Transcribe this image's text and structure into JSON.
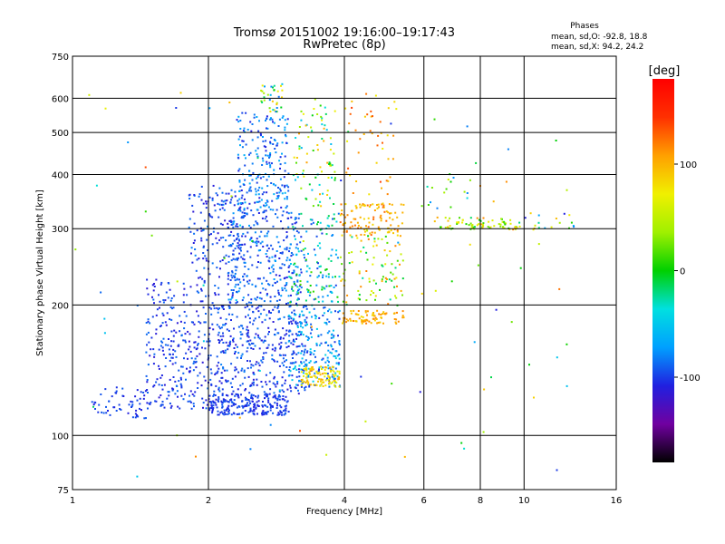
{
  "chart_data": {
    "type": "scatter",
    "title": "Tromsø 20151002  19:16:00–19:17:43",
    "subtitle": "RwPretec (8p)",
    "xlabel": "Frequency [MHz]",
    "ylabel": "Stationary phase Virtual Height [km]",
    "x_scale": "log",
    "y_scale": "log",
    "xlim": [
      1,
      16
    ],
    "ylim": [
      75,
      750
    ],
    "x_ticks": [
      1,
      2,
      4,
      6,
      8,
      10,
      16
    ],
    "y_ticks": [
      75,
      100,
      200,
      300,
      400,
      500,
      600,
      750
    ],
    "x_gridlines": [
      2,
      4,
      6,
      8,
      10
    ],
    "y_gridlines": [
      100,
      200,
      300,
      400,
      500,
      600
    ],
    "grid": true,
    "stats": {
      "heading": "Phases",
      "line_o": "mean, sd,O: -92.8, 18.8",
      "line_x": "mean, sd,X:  94.2, 24.2"
    },
    "colorbar": {
      "label": "[deg]",
      "range": [
        -180,
        180
      ],
      "ticks": [
        100,
        0,
        -100
      ],
      "colors": [
        "#000000",
        "#7000a0",
        "#2020e0",
        "#00a0ff",
        "#00e0e0",
        "#00d000",
        "#a0f000",
        "#f0f000",
        "#ffa000",
        "#ff3000",
        "#ff0000"
      ]
    },
    "clusters": [
      {
        "f": [
          1.1,
          1.45
        ],
        "h": [
          110,
          130
        ],
        "n": 60,
        "phase": [
          -110,
          -90
        ]
      },
      {
        "f": [
          1.45,
          2.1
        ],
        "h": [
          115,
          230
        ],
        "n": 320,
        "phase": [
          -115,
          -85
        ]
      },
      {
        "f": [
          1.8,
          2.4
        ],
        "h": [
          230,
          380
        ],
        "n": 180,
        "phase": [
          -115,
          -80
        ]
      },
      {
        "f": [
          2.0,
          3.0
        ],
        "h": [
          112,
          125
        ],
        "n": 220,
        "phase": [
          -110,
          -90
        ]
      },
      {
        "f": [
          2.1,
          3.3
        ],
        "h": [
          125,
          200
        ],
        "n": 350,
        "phase": [
          -115,
          -80
        ]
      },
      {
        "f": [
          2.2,
          3.2
        ],
        "h": [
          200,
          330
        ],
        "n": 300,
        "phase": [
          -110,
          -70
        ]
      },
      {
        "f": [
          2.3,
          3.0
        ],
        "h": [
          330,
          560
        ],
        "n": 220,
        "phase": [
          -110,
          -60
        ]
      },
      {
        "f": [
          2.6,
          2.9
        ],
        "h": [
          560,
          650
        ],
        "n": 35,
        "phase": [
          -90,
          100
        ]
      },
      {
        "f": [
          3.0,
          3.9
        ],
        "h": [
          130,
          200
        ],
        "n": 220,
        "phase": [
          -110,
          -40
        ]
      },
      {
        "f": [
          3.0,
          3.9
        ],
        "h": [
          200,
          330
        ],
        "n": 140,
        "phase": [
          -100,
          20
        ]
      },
      {
        "f": [
          3.1,
          3.8
        ],
        "h": [
          330,
          600
        ],
        "n": 80,
        "phase": [
          -60,
          110
        ]
      },
      {
        "f": [
          3.2,
          3.9
        ],
        "h": [
          130,
          145
        ],
        "n": 100,
        "phase": [
          60,
          110
        ]
      },
      {
        "f": [
          3.9,
          5.4
        ],
        "h": [
          182,
          195
        ],
        "n": 80,
        "phase": [
          80,
          120
        ]
      },
      {
        "f": [
          3.9,
          5.4
        ],
        "h": [
          290,
          345
        ],
        "n": 110,
        "phase": [
          80,
          130
        ]
      },
      {
        "f": [
          3.9,
          5.4
        ],
        "h": [
          200,
          290
        ],
        "n": 90,
        "phase": [
          -30,
          120
        ]
      },
      {
        "f": [
          4.0,
          5.2
        ],
        "h": [
          350,
          620
        ],
        "n": 45,
        "phase": [
          70,
          140
        ]
      },
      {
        "f": [
          6.3,
          9.8
        ],
        "h": [
          300,
          320
        ],
        "n": 75,
        "phase": [
          -20,
          120
        ]
      },
      {
        "f": [
          6.0,
          8.0
        ],
        "h": [
          330,
          400
        ],
        "n": 15,
        "phase": [
          -100,
          100
        ]
      },
      {
        "f": [
          10.0,
          13.0
        ],
        "h": [
          300,
          330
        ],
        "n": 18,
        "phase": [
          -110,
          120
        ]
      },
      {
        "f": [
          1.0,
          12.5
        ],
        "h": [
          78,
          650
        ],
        "n": 90,
        "phase": [
          -120,
          140
        ]
      }
    ]
  }
}
